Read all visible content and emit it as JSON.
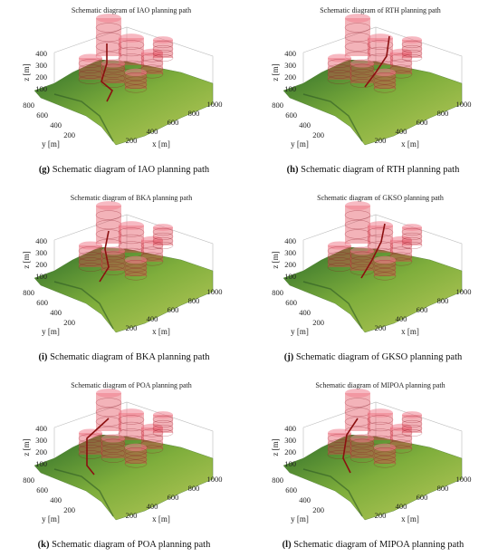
{
  "panels": [
    {
      "title": "Schematic diagram of IAO planning path",
      "label": "(g)",
      "caption": "Schematic diagram of IAO planning path",
      "z_label": "z [m]",
      "y_label": "y [m]",
      "x_label": "x [m]",
      "zticks": [
        400,
        300,
        200,
        100
      ],
      "yticks": [
        800,
        600,
        400,
        200
      ],
      "xticks": [
        200,
        400,
        600,
        800,
        1000
      ]
    },
    {
      "title": "Schematic diagram of RTH planning path",
      "label": "(h)",
      "caption": "Schematic diagram of RTH planning path",
      "z_label": "z [m]",
      "y_label": "y [m]",
      "x_label": "x [m]",
      "zticks": [
        400,
        300,
        200,
        100
      ],
      "yticks": [
        800,
        600,
        400,
        200
      ],
      "xticks": [
        200,
        400,
        600,
        800,
        1000
      ]
    },
    {
      "title": "Schematic diagram of BKA planning path",
      "label": "(i)",
      "caption": "Schematic diagram of BKA planning path",
      "z_label": "z [m]",
      "y_label": "y [m]",
      "x_label": "x [m]",
      "zticks": [
        400,
        300,
        200,
        100
      ],
      "yticks": [
        800,
        600,
        400,
        200
      ],
      "xticks": [
        200,
        400,
        600,
        800,
        1000
      ]
    },
    {
      "title": "Schematic diagram of GKSO planning path",
      "label": "(j)",
      "caption": "Schematic diagram of GKSO planning path",
      "z_label": "z [m]",
      "y_label": "y [m]",
      "x_label": "x [m]",
      "zticks": [
        400,
        300,
        200,
        100
      ],
      "yticks": [
        800,
        600,
        400,
        200
      ],
      "xticks": [
        200,
        400,
        600,
        800,
        1000
      ]
    },
    {
      "title": "Schematic diagram of POA planning path",
      "label": "(k)",
      "caption": "Schematic diagram of POA planning path",
      "z_label": "z [m]",
      "y_label": "y [m]",
      "x_label": "x [m]",
      "zticks": [
        400,
        300,
        200,
        100
      ],
      "yticks": [
        800,
        600,
        400,
        200
      ],
      "xticks": [
        200,
        400,
        600,
        800,
        1000
      ]
    },
    {
      "title": "Schematic diagram of MIPOA planning path",
      "label": "(l)",
      "caption": "Schematic diagram of MIPOA planning path",
      "z_label": "z [m]",
      "y_label": "y [m]",
      "x_label": "x [m]",
      "zticks": [
        400,
        300,
        200,
        100
      ],
      "yticks": [
        800,
        600,
        400,
        200
      ],
      "xticks": [
        200,
        400,
        600,
        800,
        1000
      ]
    }
  ]
}
